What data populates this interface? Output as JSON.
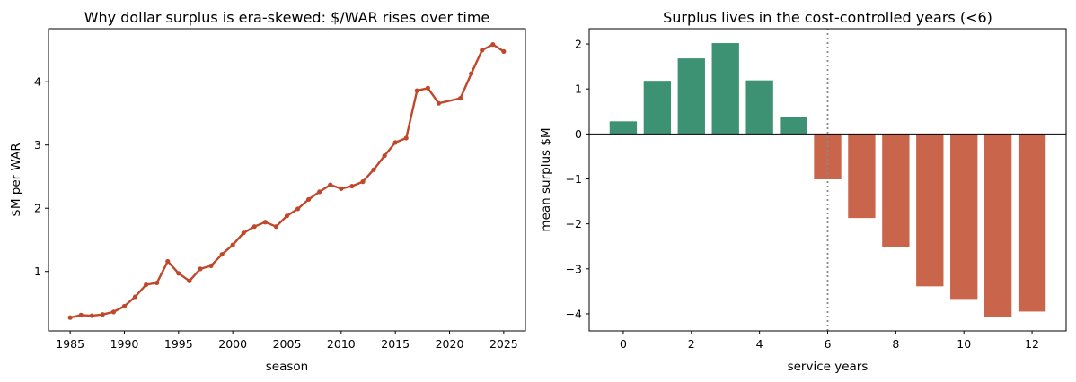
{
  "chart_data": [
    {
      "type": "line",
      "title": "Why dollar surplus is era-skewed: $/WAR rises over time",
      "xlabel": "season",
      "ylabel": "$M per WAR",
      "color": "#c0482a",
      "x": [
        1985,
        1986,
        1987,
        1988,
        1989,
        1990,
        1991,
        1992,
        1993,
        1994,
        1995,
        1996,
        1997,
        1998,
        1999,
        2000,
        2001,
        2002,
        2003,
        2004,
        2005,
        2006,
        2007,
        2008,
        2009,
        2010,
        2011,
        2012,
        2013,
        2014,
        2015,
        2016,
        2017,
        2018,
        2019,
        2021,
        2022,
        2023,
        2024,
        2025
      ],
      "values": [
        0.27,
        0.31,
        0.3,
        0.32,
        0.36,
        0.45,
        0.6,
        0.79,
        0.82,
        1.16,
        0.97,
        0.85,
        1.04,
        1.09,
        1.27,
        1.42,
        1.61,
        1.71,
        1.78,
        1.71,
        1.88,
        1.99,
        2.14,
        2.26,
        2.37,
        2.31,
        2.35,
        2.42,
        2.61,
        2.83,
        3.04,
        3.11,
        3.86,
        3.9,
        3.66,
        3.74,
        4.13,
        4.5,
        4.59,
        4.48
      ],
      "xlim": [
        1983,
        2027
      ],
      "ylim": [
        0.06,
        4.84
      ],
      "xticks": [
        "1985",
        "1990",
        "1995",
        "2000",
        "2005",
        "2010",
        "2015",
        "2020",
        "2025"
      ],
      "yticks": [
        "1",
        "2",
        "3",
        "4"
      ],
      "grid": false,
      "legend": "none"
    },
    {
      "type": "bar",
      "title": "Surplus lives in the cost-controlled years (<6)",
      "xlabel": "service years",
      "ylabel": "mean surplus $M",
      "x": [
        0,
        1,
        2,
        3,
        4,
        5,
        6,
        7,
        8,
        9,
        10,
        11,
        12
      ],
      "values": [
        0.28,
        1.18,
        1.68,
        2.02,
        1.19,
        0.37,
        -1.01,
        -1.87,
        -2.51,
        -3.39,
        -3.67,
        -4.07,
        -3.95
      ],
      "positive_color": "#3d9274",
      "negative_color": "#c9654b",
      "xlim": [
        -1.0,
        13.0
      ],
      "ylim": [
        -4.38,
        2.34
      ],
      "xticks": [
        "0",
        "2",
        "4",
        "6",
        "8",
        "10",
        "12"
      ],
      "yticks": [
        "−4",
        "−3",
        "−2",
        "−1",
        "0",
        "1",
        "2"
      ],
      "reference_line_x": 6,
      "grid": false,
      "legend": "none"
    }
  ]
}
